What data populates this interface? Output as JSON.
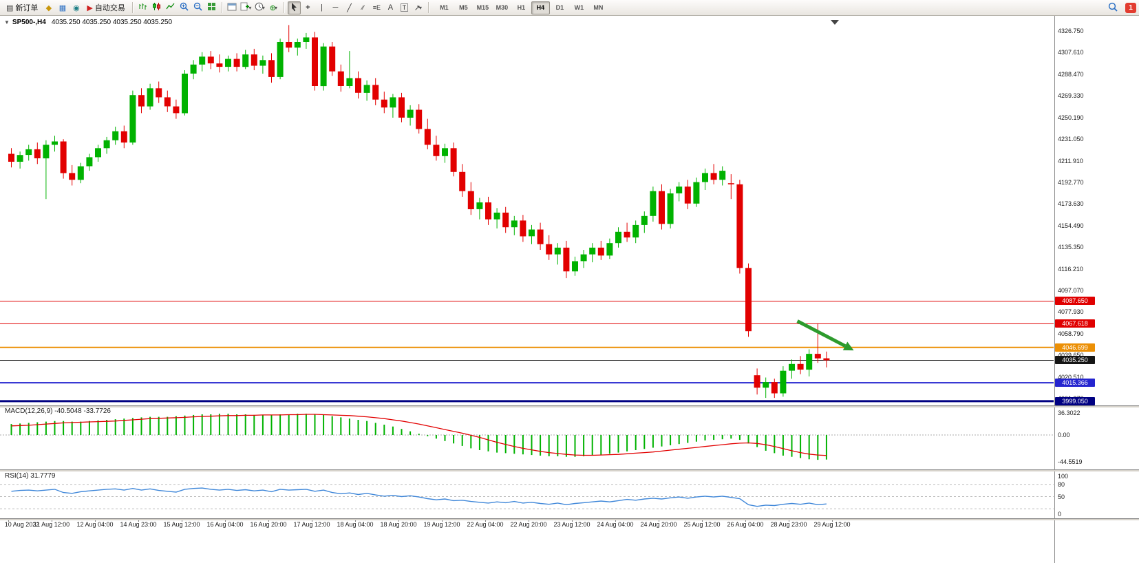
{
  "toolbar": {
    "new_order": "新订单",
    "auto_trading": "自动交易",
    "timeframes": [
      "M1",
      "M5",
      "M15",
      "M30",
      "H1",
      "H4",
      "D1",
      "W1",
      "MN"
    ],
    "active_timeframe": "H4",
    "notification_badge": "1"
  },
  "icons": {
    "new_order": "▤",
    "market_watch": "◆",
    "data_window": "▦",
    "navigator": "◉",
    "auto_trading": "▶",
    "crosshair": "+",
    "vertical_line": "|",
    "horizontal_line": "─",
    "trendline": "╱",
    "channel": "∕∕",
    "fibonacci": "≡E",
    "text_tool": "A",
    "label_tool": "T",
    "shapes": "↗",
    "dropdown": "▾",
    "indicators": "⊕",
    "symbol_caret": "▼"
  },
  "chart_header": {
    "symbol": "SP500-,H4",
    "quotes": "4035.250 4035.250 4035.250 4035.250"
  },
  "price_axis": {
    "labels": [
      "4326.750",
      "4307.610",
      "4288.470",
      "4269.330",
      "4250.190",
      "4231.050",
      "4211.910",
      "4192.770",
      "4173.630",
      "4154.490",
      "4135.350",
      "4116.210",
      "4097.070",
      "4077.930",
      "4058.790",
      "4039.650",
      "4020.510",
      "4001.370"
    ]
  },
  "levels": [
    {
      "price": "4087.650",
      "value": 4087.65,
      "color": "#e00000",
      "width": 1
    },
    {
      "price": "4067.618",
      "value": 4067.618,
      "color": "#e00000",
      "width": 1
    },
    {
      "price": "4046.699",
      "value": 4046.699,
      "color": "#ec9006",
      "width": 2
    },
    {
      "price": "4035.250",
      "value": 4035.25,
      "color": "#151515",
      "width": 1
    },
    {
      "price": "4015.366",
      "value": 4015.366,
      "color": "#2525cf",
      "width": 2
    },
    {
      "price": "3999.050",
      "value": 3999.05,
      "color": "#000082",
      "width": 3
    }
  ],
  "indicators": {
    "macd": {
      "label": "MACD(12,26,9)",
      "values": "-40.5048 -33.7726",
      "axis": [
        "36.3022",
        "0.00",
        "-44.5519"
      ]
    },
    "rsi": {
      "label": "RSI(14)",
      "value": "31.7779",
      "axis": [
        "100",
        "80",
        "50",
        "0"
      ]
    }
  },
  "time_axis": {
    "labels": [
      "10 Aug 2022",
      "11 Aug 12:00",
      "12 Aug 04:00",
      "14 Aug 23:00",
      "15 Aug 12:00",
      "16 Aug 04:00",
      "16 Aug 20:00",
      "17 Aug 12:00",
      "18 Aug 04:00",
      "18 Aug 20:00",
      "19 Aug 12:00",
      "22 Aug 04:00",
      "22 Aug 20:00",
      "23 Aug 12:00",
      "24 Aug 04:00",
      "24 Aug 20:00",
      "25 Aug 12:00",
      "26 Aug 04:00",
      "28 Aug 23:00",
      "29 Aug 12:00"
    ]
  },
  "chart_data": [
    {
      "type": "candlestick",
      "title": "SP500-,H4",
      "timeframe": "H4",
      "ylim": [
        3995,
        4330
      ],
      "up_color": "#00b200",
      "down_color": "#e20000",
      "x_labels": [
        "10 Aug 2022",
        "11 Aug 12:00",
        "12 Aug 04:00",
        "14 Aug 23:00",
        "15 Aug 12:00",
        "16 Aug 04:00",
        "16 Aug 20:00",
        "17 Aug 12:00",
        "18 Aug 04:00",
        "18 Aug 20:00",
        "19 Aug 12:00",
        "22 Aug 04:00",
        "22 Aug 20:00",
        "23 Aug 12:00",
        "24 Aug 04:00",
        "24 Aug 20:00",
        "25 Aug 12:00",
        "26 Aug 04:00",
        "28 Aug 23:00",
        "29 Aug 12:00"
      ],
      "levels": [
        4087.65,
        4067.618,
        4046.699,
        4035.25,
        4015.366,
        3999.05
      ],
      "annotation_arrow": {
        "from_index": 91,
        "from_price": 4070,
        "to_index": 97.5,
        "to_price": 4044,
        "color": "#2d9b2d"
      },
      "candles": [
        [
          4218,
          4223,
          4206,
          4211
        ],
        [
          4211,
          4220,
          4205,
          4217
        ],
        [
          4217,
          4226,
          4212,
          4222
        ],
        [
          4222,
          4228,
          4209,
          4214
        ],
        [
          4214,
          4230,
          4178,
          4226
        ],
        [
          4226,
          4234,
          4220,
          4229
        ],
        [
          4229,
          4231,
          4196,
          4201
        ],
        [
          4201,
          4208,
          4190,
          4195
        ],
        [
          4195,
          4210,
          4192,
          4207
        ],
        [
          4207,
          4218,
          4203,
          4215
        ],
        [
          4215,
          4226,
          4211,
          4223
        ],
        [
          4223,
          4233,
          4218,
          4230
        ],
        [
          4230,
          4242,
          4226,
          4238
        ],
        [
          4238,
          4243,
          4223,
          4228
        ],
        [
          4228,
          4274,
          4226,
          4270
        ],
        [
          4270,
          4276,
          4254,
          4260
        ],
        [
          4260,
          4280,
          4257,
          4276
        ],
        [
          4276,
          4282,
          4263,
          4268
        ],
        [
          4268,
          4274,
          4255,
          4260
        ],
        [
          4260,
          4266,
          4249,
          4254
        ],
        [
          4254,
          4292,
          4252,
          4289
        ],
        [
          4289,
          4301,
          4284,
          4297
        ],
        [
          4297,
          4308,
          4291,
          4304
        ],
        [
          4304,
          4309,
          4293,
          4298
        ],
        [
          4298,
          4306,
          4290,
          4295
        ],
        [
          4295,
          4305,
          4291,
          4302
        ],
        [
          4302,
          4307,
          4291,
          4295
        ],
        [
          4295,
          4310,
          4293,
          4306
        ],
        [
          4306,
          4311,
          4292,
          4296
        ],
        [
          4296,
          4305,
          4289,
          4301
        ],
        [
          4301,
          4307,
          4281,
          4286
        ],
        [
          4286,
          4320,
          4284,
          4317
        ],
        [
          4317,
          4332,
          4308,
          4312
        ],
        [
          4312,
          4320,
          4305,
          4317
        ],
        [
          4317,
          4325,
          4311,
          4321
        ],
        [
          4321,
          4326,
          4274,
          4278
        ],
        [
          4278,
          4316,
          4274,
          4313
        ],
        [
          4313,
          4317,
          4287,
          4291
        ],
        [
          4291,
          4297,
          4273,
          4278
        ],
        [
          4278,
          4309,
          4276,
          4285
        ],
        [
          4285,
          4291,
          4267,
          4272
        ],
        [
          4272,
          4283,
          4265,
          4279
        ],
        [
          4279,
          4285,
          4261,
          4266
        ],
        [
          4266,
          4273,
          4254,
          4259
        ],
        [
          4259,
          4271,
          4250,
          4268
        ],
        [
          4268,
          4272,
          4246,
          4250
        ],
        [
          4250,
          4261,
          4243,
          4257
        ],
        [
          4257,
          4262,
          4236,
          4240
        ],
        [
          4240,
          4249,
          4222,
          4226
        ],
        [
          4226,
          4234,
          4212,
          4216
        ],
        [
          4216,
          4227,
          4210,
          4223
        ],
        [
          4223,
          4228,
          4198,
          4202
        ],
        [
          4202,
          4209,
          4180,
          4185
        ],
        [
          4185,
          4193,
          4164,
          4169
        ],
        [
          4169,
          4179,
          4160,
          4175
        ],
        [
          4175,
          4180,
          4155,
          4160
        ],
        [
          4160,
          4170,
          4152,
          4166
        ],
        [
          4166,
          4171,
          4148,
          4153
        ],
        [
          4153,
          4163,
          4146,
          4159
        ],
        [
          4159,
          4164,
          4140,
          4145
        ],
        [
          4145,
          4155,
          4138,
          4151
        ],
        [
          4151,
          4157,
          4133,
          4138
        ],
        [
          4138,
          4146,
          4124,
          4129
        ],
        [
          4129,
          4139,
          4120,
          4135
        ],
        [
          4135,
          4141,
          4108,
          4114
        ],
        [
          4114,
          4127,
          4110,
          4123
        ],
        [
          4123,
          4133,
          4117,
          4129
        ],
        [
          4129,
          4139,
          4122,
          4135
        ],
        [
          4135,
          4141,
          4124,
          4128
        ],
        [
          4128,
          4143,
          4125,
          4139
        ],
        [
          4139,
          4153,
          4135,
          4149
        ],
        [
          4149,
          4157,
          4140,
          4144
        ],
        [
          4144,
          4159,
          4139,
          4155
        ],
        [
          4155,
          4167,
          4148,
          4163
        ],
        [
          4163,
          4189,
          4158,
          4185
        ],
        [
          4185,
          4191,
          4151,
          4156
        ],
        [
          4156,
          4187,
          4152,
          4183
        ],
        [
          4183,
          4193,
          4176,
          4189
        ],
        [
          4189,
          4195,
          4169,
          4174
        ],
        [
          4174,
          4197,
          4171,
          4193
        ],
        [
          4193,
          4205,
          4186,
          4201
        ],
        [
          4201,
          4209,
          4191,
          4195
        ],
        [
          4195,
          4207,
          4190,
          4203
        ],
        [
          4192,
          4200,
          4178,
          4191
        ],
        [
          4191,
          4195,
          4112,
          4117
        ],
        [
          4117,
          4121,
          4056,
          4061
        ],
        [
          4022,
          4028,
          4005,
          4011
        ],
        [
          4011,
          4020,
          4002,
          4016
        ],
        [
          4016,
          4019,
          4002,
          4006
        ],
        [
          4006,
          4030,
          4003,
          4026
        ],
        [
          4026,
          4036,
          4019,
          4032
        ],
        [
          4032,
          4039,
          4023,
          4027
        ],
        [
          4027,
          4045,
          4021,
          4041
        ],
        [
          4041,
          4068,
          4033,
          4037
        ],
        [
          4037,
          4043,
          4029,
          4035.25
        ]
      ]
    },
    {
      "type": "bar",
      "name": "MACD(12,26,9)",
      "current_main": -40.5048,
      "current_signal": -33.7726,
      "ylim": [
        -44.5519,
        36.3022
      ],
      "main": [
        18,
        19,
        20,
        21,
        22,
        23,
        23,
        22,
        22,
        23,
        24,
        25,
        26,
        27,
        28,
        29,
        30,
        30,
        30,
        31,
        32,
        33,
        34,
        34,
        35,
        35,
        34,
        34,
        33,
        33,
        33,
        34,
        34,
        35,
        35,
        34,
        33,
        31,
        29,
        27,
        25,
        23,
        20,
        17,
        14,
        10,
        6,
        2,
        -2,
        -6,
        -10,
        -14,
        -18,
        -22,
        -25,
        -27,
        -29,
        -30,
        -31,
        -32,
        -33,
        -34,
        -35,
        -35,
        -36,
        -36,
        -35,
        -34,
        -33,
        -31,
        -29,
        -27,
        -25,
        -23,
        -21,
        -19,
        -17,
        -15,
        -13,
        -11,
        -9,
        -8,
        -7,
        -6,
        -8,
        -14,
        -20,
        -26,
        -30,
        -34,
        -36,
        -38,
        -40,
        -41,
        -40.5
      ],
      "signal": [
        15,
        15.5,
        16,
        17,
        18,
        19,
        20,
        20.5,
        21,
        21.5,
        22,
        22.5,
        23,
        24,
        25,
        26,
        27,
        27.5,
        28,
        28.5,
        29,
        30,
        30.5,
        31,
        31.5,
        32,
        32,
        32.5,
        32.5,
        33,
        33,
        33,
        33.5,
        33.5,
        34,
        34,
        33.5,
        33,
        32.5,
        32,
        31,
        30,
        28.5,
        27,
        25,
        23,
        20.5,
        18,
        15,
        12,
        9,
        6,
        3,
        -0.5,
        -4,
        -8,
        -12,
        -15.5,
        -19,
        -22,
        -24.5,
        -27,
        -29,
        -30.5,
        -32,
        -33,
        -33.5,
        -33.5,
        -33,
        -32.5,
        -32,
        -31,
        -30,
        -29,
        -28,
        -26.5,
        -25,
        -23.5,
        -22,
        -20.5,
        -19,
        -17.5,
        -16,
        -14.5,
        -13.5,
        -13,
        -14,
        -16,
        -19,
        -22.5,
        -26,
        -29,
        -31.5,
        -33,
        -33.77
      ]
    },
    {
      "type": "line",
      "name": "RSI(14)",
      "current": 31.7779,
      "ylim": [
        0,
        100
      ],
      "levels": [
        80,
        50,
        20
      ],
      "values": [
        63,
        65,
        66,
        64,
        66,
        68,
        60,
        58,
        62,
        64,
        66,
        68,
        69,
        66,
        70,
        66,
        69,
        65,
        63,
        61,
        68,
        70,
        71,
        68,
        66,
        68,
        65,
        67,
        64,
        66,
        62,
        68,
        66,
        67,
        68,
        63,
        66,
        60,
        57,
        59,
        55,
        58,
        54,
        51,
        53,
        50,
        52,
        49,
        45,
        42,
        44,
        40,
        41,
        38,
        36,
        34,
        37,
        35,
        38,
        34,
        36,
        33,
        31,
        34,
        30,
        33,
        35,
        37,
        39,
        37,
        40,
        43,
        41,
        44,
        46,
        44,
        47,
        49,
        46,
        49,
        51,
        49,
        51,
        48,
        45,
        30,
        26,
        29,
        28,
        31,
        33,
        31,
        34,
        30,
        31.78
      ]
    }
  ]
}
